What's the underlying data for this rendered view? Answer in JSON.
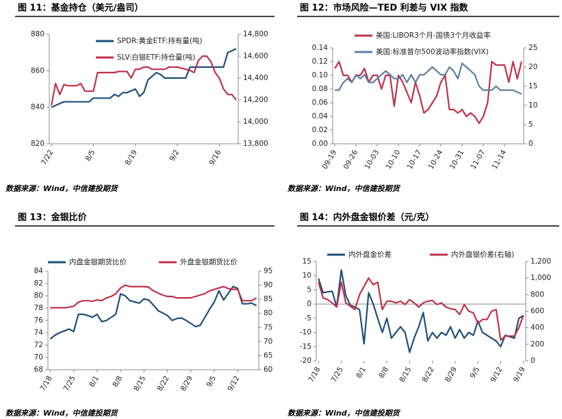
{
  "chart_data": [
    {
      "type": "line",
      "title": "图 11：基金持仓（美元/盎司）",
      "source": "数据来源：Wind，中信建投期货",
      "categories": [
        "7/22",
        null,
        null,
        null,
        null,
        null,
        null,
        null,
        null,
        null,
        "8/5",
        null,
        null,
        null,
        null,
        null,
        null,
        null,
        null,
        null,
        "8/19",
        null,
        null,
        null,
        null,
        null,
        null,
        null,
        null,
        null,
        "9/2",
        null,
        null,
        null,
        null,
        null,
        null,
        null,
        null,
        null,
        "9/16",
        null,
        null,
        null,
        null
      ],
      "ylim": [
        820,
        880
      ],
      "yticks": [
        820,
        840,
        860,
        880
      ],
      "y2lim": [
        13800,
        14800
      ],
      "y2ticks": [
        {
          "value": 13800,
          "label": "13,800"
        },
        {
          "value": 14000,
          "label": "14,000"
        },
        {
          "value": 14200,
          "label": "14,200"
        },
        {
          "value": 14400,
          "label": "14,400"
        },
        {
          "value": 14600,
          "label": "14,600"
        },
        {
          "value": 14800,
          "label": "14,800"
        }
      ],
      "series": [
        {
          "name": "SPDR:黄金ETF:持有量(吨)",
          "color": "#1f4e79",
          "values": [
            840,
            841,
            842,
            843,
            843,
            843,
            843,
            843,
            843,
            843,
            845,
            845,
            845,
            845,
            845,
            847,
            846,
            848,
            848,
            849,
            850,
            846,
            848,
            855,
            857,
            859,
            858,
            856,
            856,
            856,
            856,
            856,
            856,
            862,
            862,
            862,
            862,
            862,
            862,
            862,
            862,
            862,
            870,
            871,
            872
          ]
        },
        {
          "name": "SLV:白银ETF:持仓量(吨)",
          "color": "#c0304a",
          "axis": "y2",
          "values": [
            14150,
            14350,
            14250,
            14340,
            14330,
            14330,
            14330,
            14350,
            14280,
            14280,
            14280,
            14450,
            14450,
            14450,
            14450,
            14450,
            14460,
            14460,
            14460,
            14400,
            14480,
            14480,
            14500,
            14500,
            14480,
            14480,
            14480,
            14480,
            14500,
            14500,
            14500,
            14490,
            14480,
            14470,
            14450,
            14560,
            14600,
            14600,
            14550,
            14450,
            14400,
            14300,
            14250,
            14250,
            14200
          ]
        }
      ]
    },
    {
      "type": "line",
      "title": "图 12：市场风险—TED 利差与 VIX 指数",
      "source": "数据来源：Wind，中信建投期货",
      "categories": [
        "09-19",
        null,
        null,
        null,
        null,
        "09-26",
        null,
        null,
        null,
        null,
        "10-03",
        null,
        null,
        null,
        null,
        "10-10",
        null,
        null,
        null,
        null,
        "10-17",
        null,
        null,
        null,
        null,
        "10-24",
        null,
        null,
        null,
        null,
        "10-31",
        null,
        null,
        null,
        null,
        "11-07",
        null,
        null,
        null,
        null,
        "11-14",
        null,
        null,
        null,
        null
      ],
      "ylim": [
        0,
        0.14
      ],
      "yticks": [
        {
          "value": 0,
          "label": "0.00"
        },
        {
          "value": 0.02,
          "label": "0.02"
        },
        {
          "value": 0.04,
          "label": "0.04"
        },
        {
          "value": 0.06,
          "label": "0.06"
        },
        {
          "value": 0.08,
          "label": "0.08"
        },
        {
          "value": 0.1,
          "label": "0.10"
        },
        {
          "value": 0.12,
          "label": "0.12"
        },
        {
          "value": 0.14,
          "label": "0.14"
        }
      ],
      "y2lim": [
        0,
        25
      ],
      "y2ticks": [
        0,
        5,
        10,
        15,
        20,
        25
      ],
      "series": [
        {
          "name": "美国:LIBOR3个月-国债3个月收益率",
          "color": "#c0304a",
          "values": [
            0.11,
            0.12,
            0.1,
            0.1,
            0.09,
            0.1,
            0.1,
            0.11,
            0.09,
            0.1,
            0.1,
            0.08,
            0.1,
            0.1,
            0.055,
            0.1,
            0.09,
            0.075,
            0.06,
            0.09,
            0.07,
            0.045,
            0.05,
            0.06,
            0.07,
            0.09,
            0.1,
            0.05,
            0.05,
            0.045,
            0.05,
            0.04,
            0.045,
            0.04,
            0.03,
            0.04,
            0.06,
            0.12,
            0.115,
            0.115,
            0.115,
            0.09,
            0.12,
            0.095,
            0.12
          ]
        },
        {
          "name": "美国:标准普尔500波动率指数(VIX)",
          "color": "#5b7fa0",
          "axis": "y2",
          "values": [
            14,
            14,
            16,
            17,
            16,
            18,
            17,
            18,
            16,
            16,
            17,
            18,
            19,
            18,
            17,
            17,
            18,
            16,
            18,
            16,
            18,
            18,
            19,
            20,
            19,
            18,
            18,
            20,
            19,
            17,
            21,
            20,
            19,
            18,
            15,
            14,
            14,
            14,
            15,
            14,
            14,
            14,
            14,
            13.5,
            13
          ]
        }
      ]
    },
    {
      "type": "line",
      "title": "图 13：金银比价",
      "source": "数据来源：Wind，中信建投期货",
      "categories": [
        "7/18",
        null,
        null,
        null,
        null,
        "7/25",
        null,
        null,
        null,
        null,
        "8/1",
        null,
        null,
        null,
        null,
        "8/8",
        null,
        null,
        null,
        null,
        "8/15",
        null,
        null,
        null,
        null,
        "8/22",
        null,
        null,
        null,
        null,
        "8/29",
        null,
        null,
        null,
        null,
        "9/5",
        null,
        null,
        null,
        null,
        "9/12",
        null,
        null,
        null,
        null
      ],
      "ylim": [
        68,
        84
      ],
      "yticks": [
        68,
        70,
        72,
        74,
        76,
        78,
        80,
        82,
        84
      ],
      "y2lim": [
        60,
        95
      ],
      "y2ticks": [
        60,
        65,
        70,
        75,
        80,
        85,
        90,
        95
      ],
      "series": [
        {
          "name": "内盘金银期货比价",
          "color": "#1f4e79",
          "values": [
            73,
            73.6,
            74,
            74.3,
            74.6,
            74.2,
            77,
            77,
            76.8,
            76.5,
            77,
            75.8,
            76,
            76.5,
            77,
            80.3,
            80,
            79.2,
            79,
            78.8,
            79.5,
            79.3,
            78.5,
            77.6,
            77.2,
            76.8,
            76,
            76.3,
            76.4,
            76,
            75.5,
            75,
            75.2,
            76.5,
            77.8,
            79,
            80.8,
            79.3,
            80.4,
            81.5,
            81.2,
            78.7,
            78.7,
            78.8,
            78.4
          ]
        },
        {
          "name": "外盘金银期货比价",
          "color": "#c0304a",
          "axis": "y2",
          "values": [
            82,
            82,
            82,
            82,
            82.2,
            82.5,
            84,
            84.5,
            84.5,
            84.3,
            84.8,
            84.5,
            85.5,
            86,
            87,
            89,
            90,
            89.5,
            89.5,
            89.5,
            89.5,
            89.3,
            88,
            87.2,
            86.5,
            86,
            86,
            85.5,
            85.5,
            85.5,
            85.5,
            86,
            86.5,
            87,
            88,
            88.5,
            89,
            89.5,
            88.8,
            88.5,
            88.5,
            84.5,
            84.5,
            84.5,
            85.5
          ]
        }
      ]
    },
    {
      "type": "line",
      "title": "图 14：内外盘金银价差（元/克）",
      "source": "数据来源：Wind，中信建投期货",
      "categories": [
        "7/18",
        null,
        null,
        null,
        null,
        "7/25",
        null,
        null,
        null,
        null,
        "8/1",
        null,
        null,
        null,
        null,
        "8/8",
        null,
        null,
        null,
        null,
        "8/15",
        null,
        null,
        null,
        null,
        "8/22",
        null,
        null,
        null,
        null,
        "8/29",
        null,
        null,
        null,
        null,
        "9/5",
        null,
        null,
        null,
        null,
        "9/12",
        null,
        null,
        null,
        null,
        "9/19"
      ],
      "ylim": [
        -20,
        15
      ],
      "yticks": [
        -20,
        -15,
        -10,
        -5,
        0,
        5,
        10,
        15
      ],
      "y2lim": [
        0,
        1200
      ],
      "y2ticks": [
        0,
        200,
        400,
        600,
        800,
        {
          "value": 1000,
          "label": "1,000"
        },
        {
          "value": 1200,
          "label": "1,200"
        }
      ],
      "series": [
        {
          "name": "内外盘金价差",
          "color": "#1f4e79",
          "values": [
            9,
            4,
            4.3,
            4.5,
            -1,
            12,
            3,
            -0.5,
            -1,
            -2,
            -14,
            4,
            0,
            -5,
            -10,
            -5,
            -12,
            -10,
            -8,
            -10,
            -17,
            -12,
            -8,
            -3,
            -13,
            -10,
            -12,
            -10,
            -11,
            -8,
            -12,
            -9,
            -12,
            -10,
            -11,
            -6,
            -10,
            -11,
            -12,
            -13,
            -15,
            -11,
            -11.5,
            -12,
            -5,
            -4
          ]
        },
        {
          "name": "内外盘银价差(右轴)",
          "color": "#c0304a",
          "axis": "y2",
          "values": [
            950,
            760,
            740,
            700,
            650,
            950,
            700,
            660,
            620,
            800,
            900,
            1000,
            920,
            950,
            620,
            720,
            720,
            700,
            720,
            680,
            740,
            700,
            650,
            700,
            720,
            730,
            680,
            700,
            650,
            630,
            620,
            560,
            680,
            600,
            580,
            450,
            500,
            500,
            600,
            620,
            250,
            300,
            300,
            300,
            400,
            550
          ]
        }
      ]
    }
  ]
}
